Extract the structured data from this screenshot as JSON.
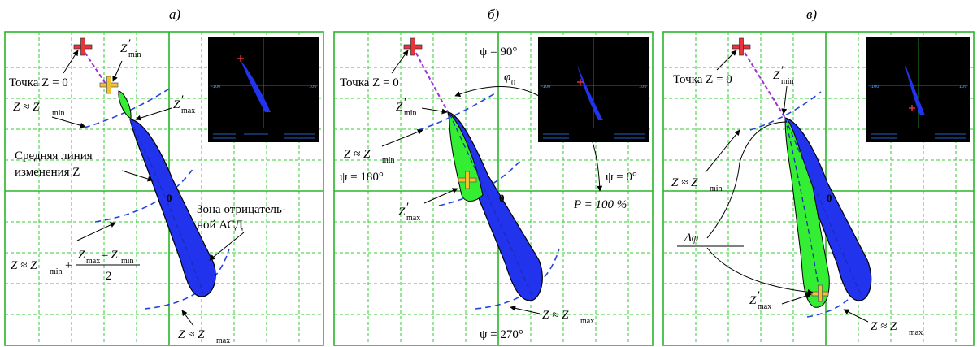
{
  "panels": [
    {
      "title": "а)",
      "labels": {
        "point_z0": "Точка Z = 0",
        "zmin_prime": "Z",
        "zmin_prime_sub": "min",
        "zmax_prime": "Z",
        "zmax_prime_sub": "max",
        "z_approx_zmin": "Z ≈ Z",
        "z_approx_zmin_sub": "min",
        "mean_line_1": "Средняя линия",
        "mean_line_2": "изменения Z",
        "origin": "0",
        "neg_zone_1": "Зона отрицатель-",
        "neg_zone_2": "ной АСД",
        "formula_left": "Z ≈ Z",
        "formula_left_sub": "min",
        "formula_plus": "+",
        "formula_num": "Z",
        "formula_num_sub1": "max",
        "formula_num_minus": "– Z",
        "formula_num_sub2": "min",
        "formula_den": "2",
        "z_approx_zmax": "Z ≈ Z",
        "z_approx_zmax_sub": "max"
      }
    },
    {
      "title": "б)",
      "labels": {
        "point_z0": "Точка Z = 0",
        "psi90": "ψ = 90°",
        "phi0": "φ",
        "phi0_sub": "0",
        "zmin_prime": "Z",
        "zmin_prime_sub": "min",
        "z_approx_zmin": "Z ≈ Z",
        "z_approx_zmin_sub": "min",
        "psi180": "ψ = 180°",
        "psi0": "ψ = 0°",
        "zmax_prime": "Z",
        "zmax_prime_sub": "max",
        "origin": "0",
        "p100": "P = 100 %",
        "z_approx_zmax": "Z ≈ Z",
        "z_approx_zmax_sub": "max",
        "psi270": "ψ = 270°"
      }
    },
    {
      "title": "в)",
      "labels": {
        "point_z0": "Точка Z = 0",
        "zmin_prime": "Z",
        "zmin_prime_sub": "min",
        "z_approx_zmin": "Z ≈ Z",
        "z_approx_zmin_sub": "min",
        "origin": "0",
        "dphi": "Δφ",
        "zmax_prime": "Z",
        "zmax_prime_sub": "max",
        "z_approx_zmax": "Z ≈ Z",
        "z_approx_zmax_sub": "max"
      }
    }
  ],
  "scope": {
    "tick_neg": "-100",
    "tick_pos": "100"
  },
  "colors": {
    "grid": "#2ab52a",
    "grid_dash": "#33cc33",
    "blue_fill": "#2233ee",
    "green_fill": "#33ee33",
    "arc": "#2244dd",
    "cross_red": "#e8343a",
    "cross_yellow": "#f2c12e",
    "scope_bg": "#000000"
  }
}
